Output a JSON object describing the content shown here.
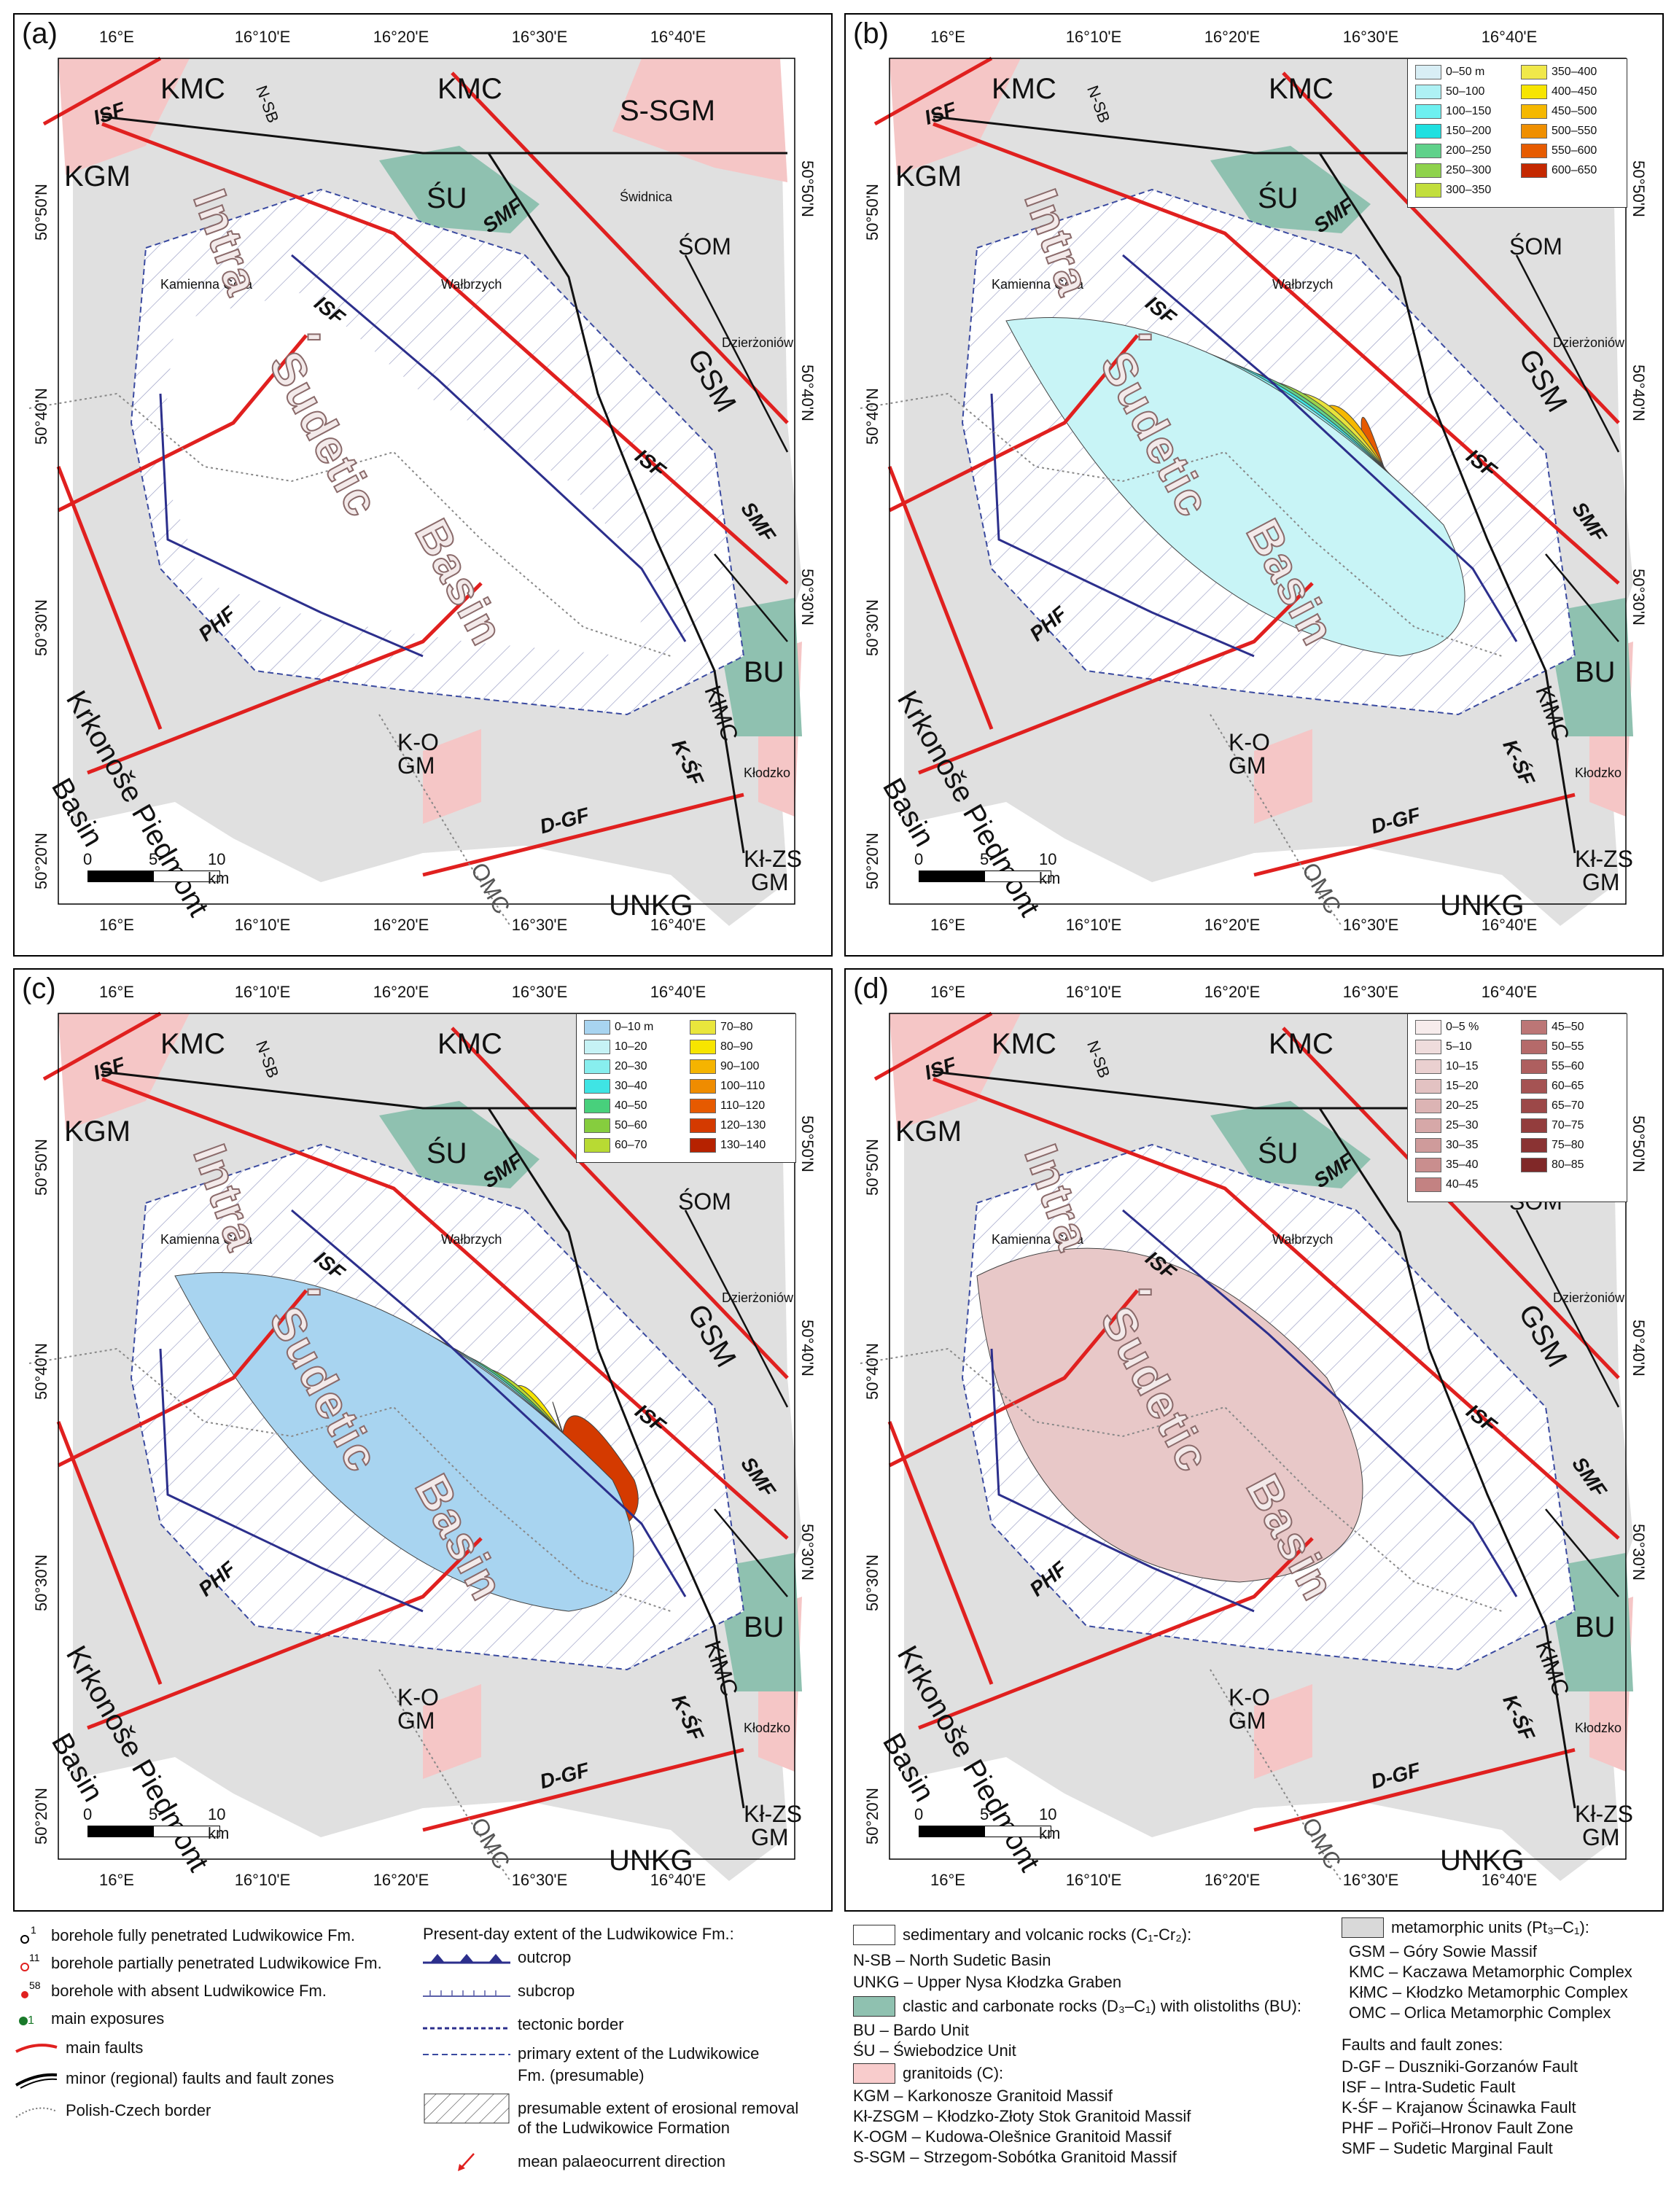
{
  "panels": [
    {
      "letter": "(a)",
      "legend": null
    },
    {
      "letter": "(b)",
      "legend": {
        "col1": [
          "0–50 m",
          "50–100",
          "100–150",
          "150–200",
          "200–250",
          "250–300",
          "300–350"
        ],
        "col2": [
          "350–400",
          "400–450",
          "450–500",
          "500–550",
          "550–600",
          "600–650"
        ],
        "colors1": [
          "#d8eef5",
          "#aef1f4",
          "#6ef0f0",
          "#1fe0e0",
          "#5fd18a",
          "#8fd24c",
          "#c2de3c"
        ],
        "colors2": [
          "#f0e84a",
          "#f7e500",
          "#f5b800",
          "#ef8f00",
          "#e65b00",
          "#c42800"
        ]
      }
    },
    {
      "letter": "(c)",
      "legend": {
        "col1": [
          "0–10 m",
          "10–20",
          "20–30",
          "30–40",
          "40–50",
          "50–60",
          "60–70"
        ],
        "col2": [
          "70–80",
          "80–90",
          "90–100",
          "100–110",
          "110–120",
          "120–130",
          "130–140"
        ],
        "colors1": [
          "#a8d4f0",
          "#c6f2f5",
          "#88eeee",
          "#3fe4e4",
          "#48d07c",
          "#86cd3e",
          "#b8da33"
        ],
        "colors2": [
          "#e9e63c",
          "#f7e500",
          "#f5b400",
          "#ef8c00",
          "#e65a00",
          "#d43a00",
          "#b62200"
        ]
      }
    },
    {
      "letter": "(d)",
      "legend": {
        "col1": [
          "0–5 %",
          "5–10",
          "10–15",
          "15–20",
          "20–25",
          "25–30",
          "30–35",
          "35–40",
          "40–45"
        ],
        "col2": [
          "45–50",
          "50–55",
          "55–60",
          "60–65",
          "65–70",
          "70–75",
          "75–80",
          "80–85"
        ],
        "colors1": [
          "#f7ecec",
          "#efdcdc",
          "#ead0d0",
          "#e3c2c2",
          "#dcb4b4",
          "#d6a8a8",
          "#cf9b9b",
          "#c98e8e",
          "#c38282"
        ],
        "colors2": [
          "#bc7676",
          "#b56a6a",
          "#ae5f5f",
          "#a55353",
          "#9c4848",
          "#933d3d",
          "#8a3333",
          "#802828"
        ]
      }
    }
  ],
  "axes": {
    "top": [
      "16°E",
      "16°10'E",
      "16°20'E",
      "16°30'E",
      "16°40'E"
    ],
    "bottom": [
      "16°E",
      "16°10'E",
      "16°20'E",
      "16°30'E",
      "16°40'E"
    ],
    "left": [
      "50°50'N",
      "50°40'N",
      "50°30'N",
      "50°20'N"
    ],
    "right": [
      "50°50'N",
      "50°40'N",
      "50°30'N"
    ]
  },
  "units": {
    "kmc": "KMC",
    "kgm": "KGM",
    "nsb": "N-SB",
    "ssgm": "S-SGM",
    "su": "ŚU",
    "som": "ŚOM",
    "gsm": "GSM",
    "bu": "BU",
    "kimc": "KłMC",
    "kogm1": "K-O",
    "kogm2": "GM",
    "klzs1": "Kł-ZS",
    "klzs2": "GM",
    "unkg": "UNKG",
    "omc": "OMC",
    "krk1": "Krkonoše Piedmont",
    "krk2": "Basin"
  },
  "faults": {
    "isf": "ISF",
    "smf": "SMF",
    "phf": "PHF",
    "dgf": "D-GF",
    "ksf": "K-ŚF"
  },
  "towns": {
    "swidnica": "Świdnica",
    "walbrzych": "Wałbrzych",
    "kamienna": "Kamienna Góra",
    "dzierzoniow": "Dzierżoniów",
    "klodzko": "Kłodzko"
  },
  "basin_words": {
    "w1": "Intra",
    "w2": "-",
    "w3": "Sudetic",
    "w4": "Basin"
  },
  "scale": {
    "t0": "0",
    "t5": "5",
    "t10": "10 km"
  },
  "bottom_legend": {
    "b1": "borehole fully penetrated Ludwikowice Fm.",
    "b2": "borehole partially penetrated Ludwikowice Fm.",
    "b3": "borehole with absent Ludwikowice Fm.",
    "b4": "main exposures",
    "b5": "main faults",
    "b6": "minor (regional) faults and fault zones",
    "b7": "Polish-Czech border",
    "n1": "1",
    "n2": "11",
    "n3": "58",
    "extent_head": "Present-day extent of the Ludwikowice Fm.:",
    "e1": "outcrop",
    "e2": "subcrop",
    "e3": "tectonic border",
    "e4a": "primary extent of the Ludwikowice",
    "e4b": "Fm. (presumable)",
    "e5a": "presumable extent of erosional removal",
    "e5b": "of the Ludwikowice Formation",
    "e6": "mean palaeocurrent direction",
    "s_head": "sedimentary and volcanic rocks (C₁-Cr₂):",
    "s1": "N-SB – North Sudetic Basin",
    "s2": "UNKG – Upper Nysa Kłodzka Graben",
    "c_head": "clastic and carbonate rocks (D₃–C₁) with olistoliths (BU):",
    "c1": "BU – Bardo Unit",
    "c2": "ŚU – Świebodzice Unit",
    "g_head": "granitoids (C):",
    "g1": "KGM – Karkonosze Granitoid Massif",
    "g2": "Kł-ZSGM – Kłodzko-Złoty Stok Granitoid Massif",
    "g3": "K-OGM – Kudowa-Olešnice Granitoid Massif",
    "g4": "S-SGM – Strzegom-Sobótka Granitoid Massif",
    "m_head": "metamorphic units (Pt₃–C₁):",
    "m1": "GSM – Góry Sowie Massif",
    "m2": "KMC – Kaczawa Metamorphic Complex",
    "m3": "KłMC – Kłodzko Metamorphic Complex",
    "m4": "OMC – Orlica Metamorphic Complex",
    "f_head": "Faults and fault zones:",
    "f1": "D-GF – Duszniki-Gorzanów Fault",
    "f2": "ISF – Intra-Sudetic Fault",
    "f3": "K-ŚF – Krajanow Ścinawka Fault",
    "f4": "PHF – Pořiči–Hronov Fault Zone",
    "f5": "SMF – Sudetic Marginal Fault"
  },
  "colors": {
    "metamorphic": "#d9d9d9",
    "granitoid": "#f8cccc",
    "clastic": "#8fc1b0",
    "fault": "#e0201f",
    "border": "#888"
  }
}
